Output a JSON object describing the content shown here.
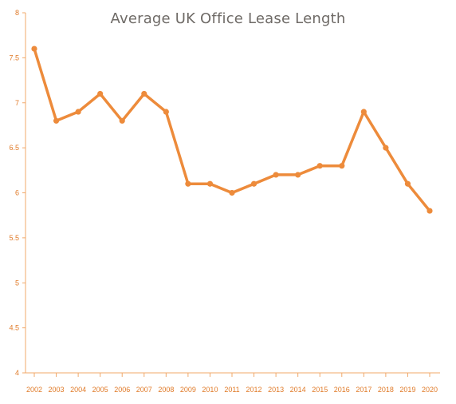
{
  "chart_data": {
    "type": "line",
    "title": "Average UK Office Lease Length",
    "xlabel": "",
    "ylabel": "",
    "x": [
      "2002",
      "2003",
      "2004",
      "2005",
      "2006",
      "2007",
      "2008",
      "2009",
      "2010",
      "2011",
      "2012",
      "2013",
      "2014",
      "2015",
      "2016",
      "2017",
      "2018",
      "2019",
      "2020"
    ],
    "series": [
      {
        "values": [
          7.6,
          6.8,
          6.9,
          7.1,
          6.8,
          7.1,
          6.9,
          6.1,
          6.1,
          6.0,
          6.1,
          6.2,
          6.2,
          6.3,
          6.3,
          6.9,
          6.5,
          6.1,
          5.8
        ]
      }
    ],
    "ylim": [
      4,
      8
    ],
    "yticks": [
      "4",
      "4.5",
      "5",
      "5.5",
      "6",
      "6.5",
      "7",
      "7.5",
      "8"
    ],
    "grid": false,
    "legend": "none",
    "colors": {
      "series": "#ED8B3B",
      "axis": "#F0A86A",
      "tick_text": "#E07A28",
      "title_text": "#6E6A66"
    }
  }
}
